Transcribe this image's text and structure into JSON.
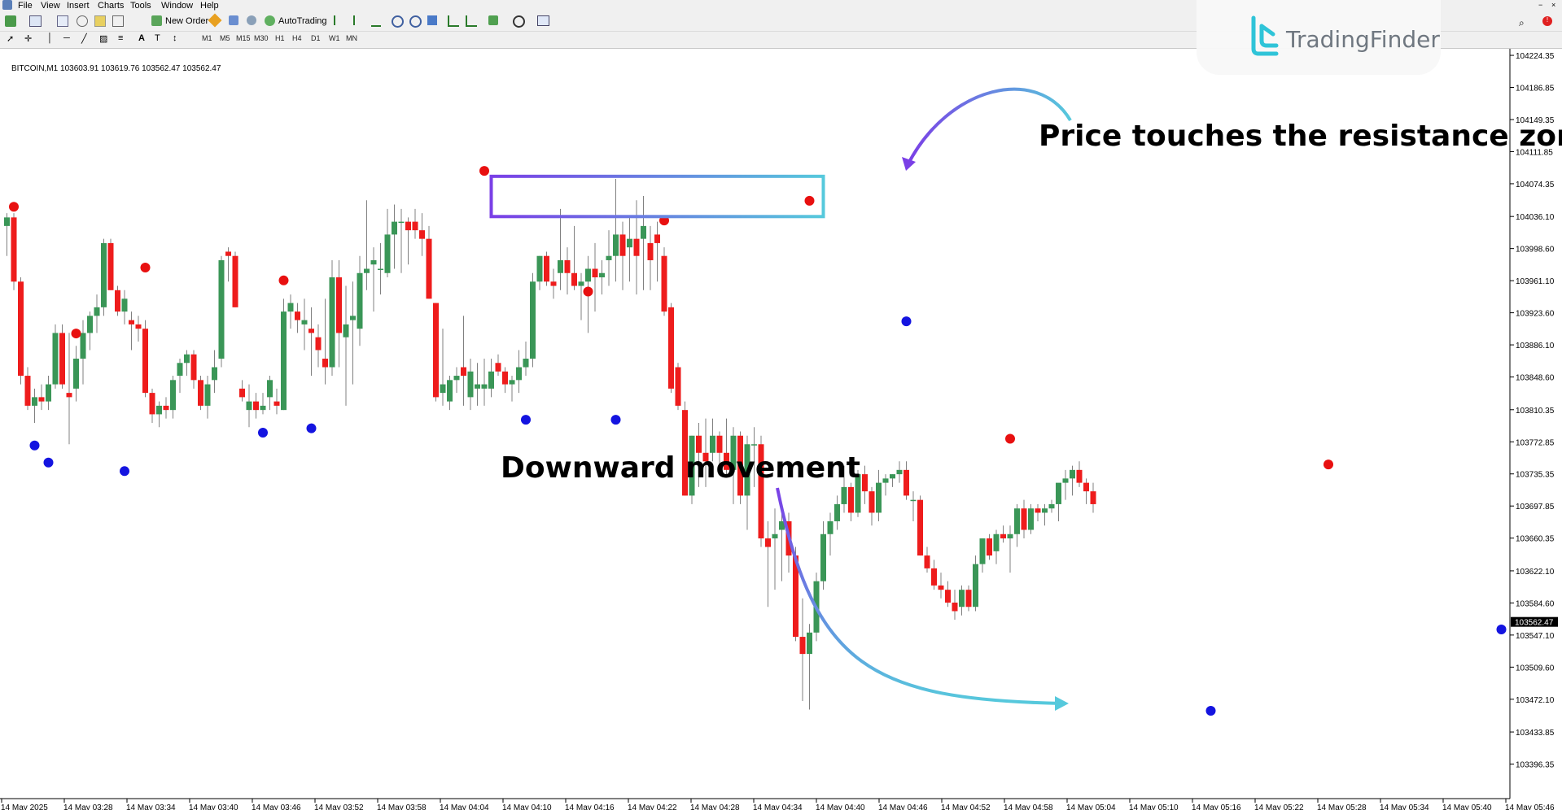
{
  "menu": [
    "File",
    "View",
    "Insert",
    "Charts",
    "Tools",
    "Window",
    "Help"
  ],
  "toolbar": {
    "new_order": "New Order",
    "autotrading": "AutoTrading",
    "timeframes": [
      "M1",
      "M5",
      "M15",
      "M30",
      "H1",
      "H4",
      "D1",
      "W1",
      "MN"
    ]
  },
  "chart_info": "BITCOIN,M1  103603.91 103619.76 103562.47 103562.47",
  "logo": "TradingFinder",
  "current_price": "103562.47",
  "annotations": {
    "resistance": "Price touches the resistance zone",
    "downward": "Downward movement"
  },
  "colors": {
    "bull": "#3a9657",
    "bear": "#ee1c1c",
    "top_dot": "#e81010",
    "bottom_dot": "#1414e0",
    "arrow_start": "#7a3fe6",
    "arrow_end": "#56c9dc"
  },
  "chart_data": {
    "type": "candlestick",
    "symbol": "BITCOIN",
    "timeframe": "M1",
    "ylim": [
      103356.0,
      104232.0
    ],
    "price_ticks": [
      "104224.35",
      "104186.85",
      "104149.35",
      "104111.85",
      "104074.35",
      "104036.10",
      "103998.60",
      "103961.10",
      "103923.60",
      "103886.10",
      "103848.60",
      "103810.35",
      "103772.85",
      "103735.35",
      "103697.85",
      "103660.35",
      "103622.10",
      "103584.60",
      "103547.10",
      "103509.60",
      "103472.10",
      "103433.85",
      "103396.35"
    ],
    "time_ticks": [
      "14 May 2025",
      "14 May 03:28",
      "14 May 03:34",
      "14 May 03:40",
      "14 May 03:46",
      "14 May 03:52",
      "14 May 03:58",
      "14 May 04:04",
      "14 May 04:10",
      "14 May 04:16",
      "14 May 04:22",
      "14 May 04:28",
      "14 May 04:34",
      "14 May 04:40",
      "14 May 04:46",
      "14 May 04:52",
      "14 May 04:58",
      "14 May 05:04",
      "14 May 05:10",
      "14 May 05:16",
      "14 May 05:22",
      "14 May 05:28",
      "14 May 05:34",
      "14 May 05:40",
      "14 May 05:46"
    ],
    "candles": [
      [
        104025,
        104040,
        103990,
        104035
      ],
      [
        104035,
        104040,
        103950,
        103960
      ],
      [
        103960,
        103965,
        103840,
        103850
      ],
      [
        103850,
        103860,
        103810,
        103815
      ],
      [
        103815,
        103835,
        103795,
        103825
      ],
      [
        103825,
        103840,
        103810,
        103820
      ],
      [
        103820,
        103850,
        103810,
        103840
      ],
      [
        103840,
        103910,
        103835,
        103900
      ],
      [
        103900,
        103910,
        103835,
        103840
      ],
      [
        103830,
        103900,
        103770,
        103825
      ],
      [
        103835,
        103885,
        103820,
        103870
      ],
      [
        103870,
        103915,
        103840,
        103900
      ],
      [
        103900,
        103925,
        103880,
        103920
      ],
      [
        103920,
        103945,
        103900,
        103930
      ],
      [
        103930,
        104010,
        103920,
        104005
      ],
      [
        104005,
        104010,
        103950,
        103950
      ],
      [
        103950,
        103955,
        103920,
        103925
      ],
      [
        103925,
        103950,
        103910,
        103940
      ],
      [
        103915,
        103925,
        103880,
        103910
      ],
      [
        103910,
        103920,
        103890,
        103905
      ],
      [
        103905,
        103915,
        103825,
        103830
      ],
      [
        103830,
        103835,
        103795,
        103805
      ],
      [
        103805,
        103820,
        103790,
        103815
      ],
      [
        103815,
        103825,
        103800,
        103810
      ],
      [
        103810,
        103850,
        103800,
        103845
      ],
      [
        103850,
        103870,
        103830,
        103865
      ],
      [
        103865,
        103880,
        103850,
        103875
      ],
      [
        103875,
        103880,
        103835,
        103845
      ],
      [
        103845,
        103850,
        103810,
        103815
      ],
      [
        103815,
        103850,
        103800,
        103840
      ],
      [
        103845,
        103880,
        103830,
        103860
      ],
      [
        103870,
        103990,
        103860,
        103985
      ],
      [
        103995,
        104000,
        103960,
        103990
      ],
      [
        103990,
        103995,
        103930,
        103930
      ],
      [
        103835,
        103845,
        103820,
        103825
      ],
      [
        103810,
        103840,
        103790,
        103820
      ],
      [
        103820,
        103830,
        103800,
        103810
      ],
      [
        103810,
        103830,
        103805,
        103815
      ],
      [
        103825,
        103850,
        103810,
        103845
      ],
      [
        103820,
        103835,
        103805,
        103815
      ],
      [
        103810,
        103940,
        103810,
        103925
      ],
      [
        103925,
        103945,
        103905,
        103935
      ],
      [
        103925,
        103935,
        103900,
        103915
      ],
      [
        103910,
        103940,
        103880,
        103915
      ],
      [
        103905,
        103930,
        103850,
        103900
      ],
      [
        103895,
        103910,
        103860,
        103880
      ],
      [
        103870,
        103940,
        103840,
        103860
      ],
      [
        103860,
        103985,
        103850,
        103965
      ],
      [
        103965,
        103985,
        103860,
        103900
      ],
      [
        103895,
        103955,
        103815,
        103910
      ],
      [
        103915,
        103960,
        103840,
        103920
      ],
      [
        103905,
        103990,
        103885,
        103970
      ],
      [
        103970,
        104055,
        103950,
        103975
      ],
      [
        103980,
        104000,
        103925,
        103985
      ],
      [
        103975,
        104005,
        103945,
        103975
      ],
      [
        103970,
        104045,
        103965,
        104015
      ],
      [
        104015,
        104050,
        103975,
        104030
      ],
      [
        104030,
        104045,
        103970,
        104030
      ],
      [
        104030,
        104035,
        103980,
        104020
      ],
      [
        104030,
        104045,
        104010,
        104020
      ],
      [
        104020,
        104040,
        103990,
        104010
      ],
      [
        104010,
        104025,
        103940,
        103940
      ],
      [
        103935,
        103935,
        103820,
        103825
      ],
      [
        103830,
        103905,
        103815,
        103840
      ],
      [
        103820,
        103850,
        103810,
        103845
      ],
      [
        103845,
        103860,
        103830,
        103850
      ],
      [
        103860,
        103920,
        103815,
        103850
      ],
      [
        103825,
        103870,
        103810,
        103855
      ],
      [
        103835,
        103865,
        103815,
        103840
      ],
      [
        103835,
        103870,
        103815,
        103840
      ],
      [
        103835,
        103870,
        103825,
        103855
      ],
      [
        103865,
        103875,
        103850,
        103855
      ],
      [
        103855,
        103860,
        103830,
        103840
      ],
      [
        103840,
        103850,
        103820,
        103845
      ],
      [
        103845,
        103880,
        103830,
        103860
      ],
      [
        103860,
        103890,
        103850,
        103870
      ],
      [
        103870,
        103970,
        103860,
        103960
      ],
      [
        103960,
        103990,
        103950,
        103990
      ],
      [
        103990,
        103995,
        103955,
        103960
      ],
      [
        103960,
        103975,
        103940,
        103955
      ],
      [
        103970,
        104045,
        103950,
        103985
      ],
      [
        103985,
        104000,
        103945,
        103970
      ],
      [
        103970,
        104025,
        103950,
        103955
      ],
      [
        103955,
        103970,
        103915,
        103960
      ],
      [
        103960,
        103990,
        103900,
        103975
      ],
      [
        103975,
        104005,
        103925,
        103965
      ],
      [
        103965,
        103985,
        103945,
        103970
      ],
      [
        103985,
        104020,
        103955,
        103990
      ],
      [
        103990,
        104080,
        103960,
        104015
      ],
      [
        104015,
        104030,
        103950,
        103990
      ],
      [
        104000,
        104035,
        103960,
        104010
      ],
      [
        104010,
        104055,
        103945,
        103990
      ],
      [
        104010,
        104060,
        103950,
        104025
      ],
      [
        104005,
        104025,
        103950,
        103985
      ],
      [
        104015,
        104030,
        103960,
        104005
      ],
      [
        103990,
        104000,
        103920,
        103925
      ],
      [
        103930,
        103935,
        103830,
        103835
      ],
      [
        103860,
        103865,
        103810,
        103815
      ],
      [
        103810,
        103820,
        103710,
        103710
      ],
      [
        103710,
        103780,
        103700,
        103780
      ],
      [
        103780,
        103795,
        103720,
        103760
      ],
      [
        103760,
        103800,
        103720,
        103750
      ],
      [
        103760,
        103800,
        103750,
        103780
      ],
      [
        103780,
        103785,
        103745,
        103760
      ],
      [
        103760,
        103800,
        103735,
        103740
      ],
      [
        103740,
        103790,
        103700,
        103780
      ],
      [
        103780,
        103785,
        103700,
        103710
      ],
      [
        103710,
        103780,
        103670,
        103770
      ],
      [
        103770,
        103790,
        103720,
        103770
      ],
      [
        103770,
        103780,
        103650,
        103660
      ],
      [
        103660,
        103680,
        103580,
        103650
      ],
      [
        103660,
        103695,
        103600,
        103665
      ],
      [
        103670,
        103700,
        103610,
        103680
      ],
      [
        103680,
        103690,
        103620,
        103640
      ],
      [
        103640,
        103650,
        103540,
        103545
      ],
      [
        103545,
        103590,
        103470,
        103525
      ],
      [
        103525,
        103560,
        103460,
        103550
      ],
      [
        103550,
        103620,
        103540,
        103610
      ],
      [
        103610,
        103680,
        103600,
        103665
      ],
      [
        103665,
        103690,
        103640,
        103680
      ],
      [
        103680,
        103710,
        103670,
        103700
      ],
      [
        103700,
        103745,
        103690,
        103720
      ],
      [
        103720,
        103725,
        103680,
        103690
      ],
      [
        103690,
        103740,
        103685,
        103735
      ],
      [
        103735,
        103745,
        103700,
        103715
      ],
      [
        103715,
        103720,
        103675,
        103690
      ],
      [
        103690,
        103740,
        103680,
        103725
      ],
      [
        103725,
        103735,
        103710,
        103730
      ],
      [
        103730,
        103735,
        103720,
        103735
      ],
      [
        103735,
        103750,
        103725,
        103740
      ],
      [
        103740,
        103750,
        103705,
        103710
      ],
      [
        103705,
        103715,
        103680,
        103705
      ],
      [
        103705,
        103710,
        103640,
        103640
      ],
      [
        103640,
        103650,
        103620,
        103625
      ],
      [
        103625,
        103635,
        103600,
        103605
      ],
      [
        103605,
        103620,
        103590,
        103600
      ],
      [
        103600,
        103610,
        103580,
        103585
      ],
      [
        103585,
        103600,
        103565,
        103575
      ],
      [
        103580,
        103605,
        103570,
        103600
      ],
      [
        103600,
        103605,
        103575,
        103580
      ],
      [
        103580,
        103640,
        103575,
        103630
      ],
      [
        103630,
        103660,
        103620,
        103660
      ],
      [
        103660,
        103665,
        103635,
        103640
      ],
      [
        103645,
        103670,
        103630,
        103665
      ],
      [
        103665,
        103675,
        103655,
        103660
      ],
      [
        103660,
        103675,
        103620,
        103665
      ],
      [
        103665,
        103700,
        103650,
        103695
      ],
      [
        103695,
        103705,
        103660,
        103670
      ],
      [
        103670,
        103700,
        103665,
        103695
      ],
      [
        103695,
        103700,
        103680,
        103690
      ],
      [
        103690,
        103700,
        103675,
        103695
      ],
      [
        103695,
        103705,
        103690,
        103700
      ],
      [
        103700,
        103720,
        103680,
        103725
      ],
      [
        103725,
        103740,
        103705,
        103730
      ],
      [
        103730,
        103745,
        103710,
        103740
      ],
      [
        103740,
        103750,
        103720,
        103725
      ],
      [
        103725,
        103730,
        103700,
        103715
      ],
      [
        103715,
        103725,
        103690,
        103700
      ]
    ],
    "top_fractals": [
      [
        1,
        104036
      ],
      [
        10,
        103888
      ],
      [
        20,
        103965
      ],
      [
        40,
        103950
      ],
      [
        69,
        104078
      ],
      [
        84,
        103937
      ],
      [
        95,
        104020
      ],
      [
        116,
        104043
      ],
      [
        145,
        103765
      ],
      [
        191,
        103735
      ]
    ],
    "bottom_fractals": [
      [
        4,
        103780
      ],
      [
        6,
        103760
      ],
      [
        17,
        103750
      ],
      [
        37,
        103795
      ],
      [
        44,
        103800
      ],
      [
        75,
        103810
      ],
      [
        88,
        103810
      ],
      [
        130,
        103925
      ],
      [
        174,
        103470
      ],
      [
        216,
        103565
      ]
    ],
    "resistance_zone": {
      "x_from": 70,
      "x_to": 118,
      "y_from": 104036,
      "y_to": 104083
    }
  }
}
